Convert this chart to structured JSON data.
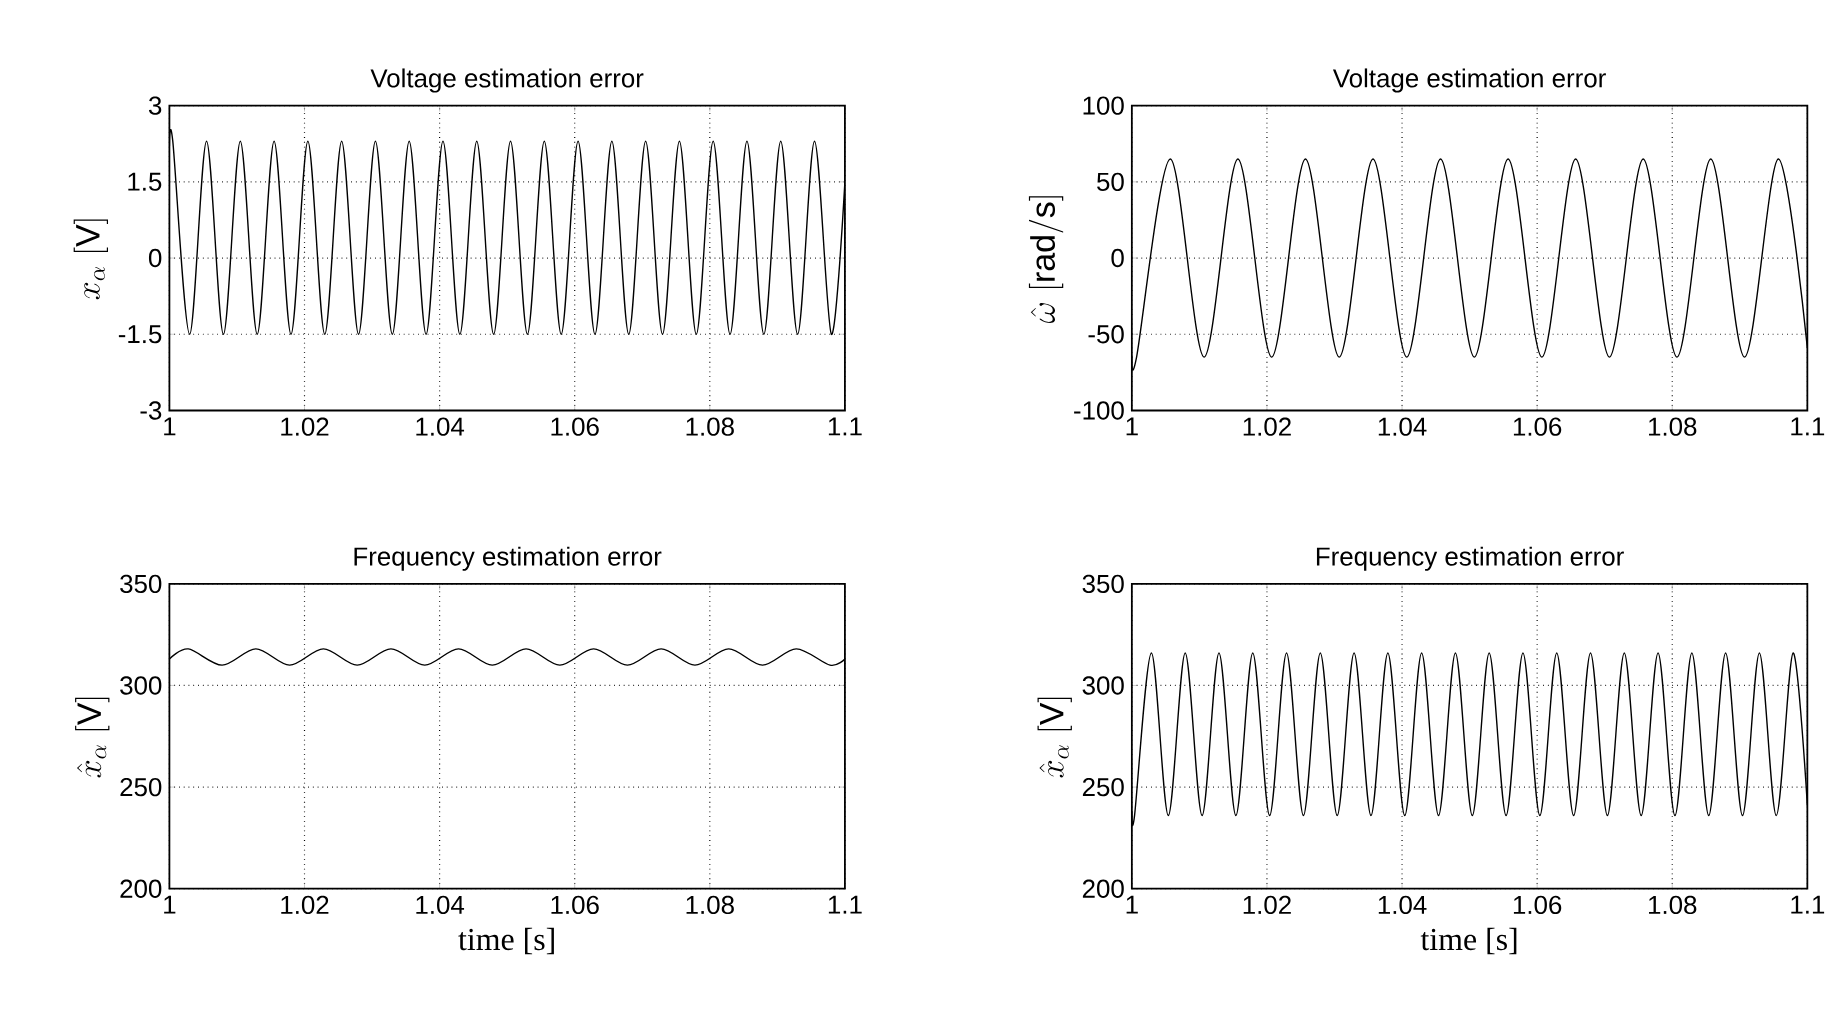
{
  "chart_data": [
    {
      "type": "line",
      "title": "Voltage estimation error",
      "ylabel": "x_\\alpha\\;[\\mathrm{V}]",
      "x": [
        1,
        1.0005,
        1.003,
        1.0055,
        1.008,
        1.0105,
        1.013,
        1.0155,
        1.018,
        1.0205,
        1.023,
        1.0255,
        1.028,
        1.0305,
        1.033,
        1.0355,
        1.038,
        1.0405,
        1.043,
        1.0455,
        1.048,
        1.0505,
        1.053,
        1.0555,
        1.058,
        1.0605,
        1.063,
        1.0655,
        1.068,
        1.0705,
        1.073,
        1.0755,
        1.078,
        1.0805,
        1.083,
        1.0855,
        1.088,
        1.0905,
        1.093,
        1.0955,
        1.098,
        1.1
      ],
      "series": [
        {
          "color": "#000000",
          "values": [
            2.2,
            2.3,
            -1.5,
            2.3,
            -1.5,
            2.3,
            -1.5,
            2.3,
            -1.5,
            2.3,
            -1.5,
            2.3,
            -1.5,
            2.3,
            -1.5,
            2.3,
            -1.5,
            2.3,
            -1.5,
            2.3,
            -1.5,
            2.3,
            -1.5,
            2.3,
            -1.5,
            2.3,
            -1.5,
            2.3,
            -1.5,
            2.3,
            -1.5,
            2.3,
            -1.5,
            2.3,
            -1.5,
            2.3,
            -1.5,
            2.3,
            -1.5,
            2.3,
            -1.5,
            1.5
          ]
        }
      ],
      "xlim": [
        1,
        1.1
      ],
      "ylim": [
        -3,
        3
      ],
      "xticks": [
        1,
        1.02,
        1.04,
        1.06,
        1.08,
        1.1
      ],
      "yticks": [
        -3,
        -1.5,
        0,
        1.5,
        3
      ],
      "grid": true
    },
    {
      "type": "line",
      "title": "Voltage estimation error",
      "ylabel": "\\hat{\\omega}\\;[\\mathrm{rad/s}]",
      "x": [
        1,
        1.0007,
        1.0057,
        1.0107,
        1.0157,
        1.0207,
        1.0257,
        1.0307,
        1.0357,
        1.0407,
        1.0457,
        1.0507,
        1.0557,
        1.0607,
        1.0657,
        1.0707,
        1.0757,
        1.0807,
        1.0857,
        1.0907,
        1.0957,
        1.1
      ],
      "series": [
        {
          "color": "#000000",
          "values": [
            -64,
            -65,
            65,
            -65,
            65,
            -65,
            65,
            -65,
            65,
            -65,
            65,
            -65,
            65,
            -65,
            65,
            -65,
            65,
            -65,
            65,
            -65,
            65,
            -59
          ]
        }
      ],
      "xlim": [
        1,
        1.1
      ],
      "ylim": [
        -100,
        100
      ],
      "xticks": [
        1,
        1.02,
        1.04,
        1.06,
        1.08,
        1.1
      ],
      "yticks": [
        -100,
        -50,
        0,
        50,
        100
      ],
      "grid": true
    },
    {
      "type": "line",
      "title": "Frequency estimation error",
      "ylabel": "\\hat{x}_\\alpha\\;[\\mathrm{V}]",
      "xlabel": "time [s]",
      "x": [
        1,
        1.0028,
        1.0078,
        1.0128,
        1.0178,
        1.0228,
        1.0278,
        1.0328,
        1.0378,
        1.0428,
        1.0478,
        1.0528,
        1.0578,
        1.0628,
        1.0678,
        1.0728,
        1.0778,
        1.0828,
        1.0878,
        1.0928,
        1.0978,
        1.1
      ],
      "series": [
        {
          "color": "#000000",
          "values": [
            313,
            318,
            310,
            318,
            310,
            318,
            310,
            318,
            310,
            318,
            310,
            318,
            310,
            318,
            310,
            318,
            310,
            318,
            310,
            318,
            310,
            313
          ]
        }
      ],
      "xlim": [
        1,
        1.1
      ],
      "ylim": [
        200,
        350
      ],
      "xticks": [
        1,
        1.02,
        1.04,
        1.06,
        1.08,
        1.1
      ],
      "yticks": [
        200,
        250,
        300,
        350
      ],
      "grid": true
    },
    {
      "type": "line",
      "title": "Frequency estimation error",
      "ylabel": "\\hat{x}_\\alpha\\;[\\mathrm{V}]",
      "xlabel": "time [s]",
      "x": [
        1,
        1.0004,
        1.0029,
        1.0054,
        1.0079,
        1.0104,
        1.0129,
        1.0154,
        1.0179,
        1.0204,
        1.0229,
        1.0254,
        1.0279,
        1.0304,
        1.0329,
        1.0354,
        1.0379,
        1.0404,
        1.0429,
        1.0454,
        1.0479,
        1.0504,
        1.0529,
        1.0554,
        1.0579,
        1.0604,
        1.0629,
        1.0654,
        1.0679,
        1.0704,
        1.0729,
        1.0754,
        1.0779,
        1.0804,
        1.0829,
        1.0854,
        1.0879,
        1.0904,
        1.0929,
        1.0954,
        1.0979,
        1.1
      ],
      "series": [
        {
          "color": "#000000",
          "values": [
            238,
            236,
            316,
            236,
            316,
            236,
            316,
            236,
            316,
            236,
            316,
            236,
            316,
            236,
            316,
            236,
            316,
            236,
            316,
            236,
            316,
            236,
            316,
            236,
            316,
            236,
            316,
            236,
            316,
            236,
            316,
            236,
            316,
            236,
            316,
            236,
            316,
            236,
            316,
            236,
            316,
            241
          ]
        }
      ],
      "xlim": [
        1,
        1.1
      ],
      "ylim": [
        200,
        350
      ],
      "xticks": [
        1,
        1.02,
        1.04,
        1.06,
        1.08,
        1.1
      ],
      "yticks": [
        200,
        250,
        300,
        350
      ],
      "grid": true
    }
  ]
}
